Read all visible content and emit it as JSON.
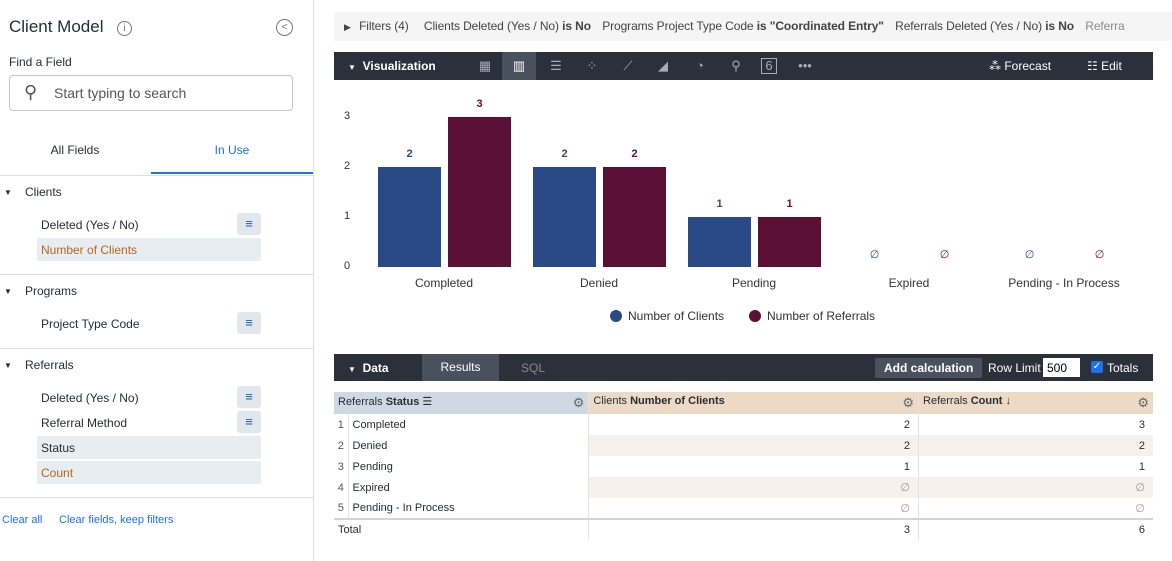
{
  "sidebar": {
    "title": "Client Model",
    "info_icon": "info-icon",
    "back_icon": "back-icon",
    "find_label": "Find a Field",
    "search_placeholder": "Start typing to search",
    "tabs": [
      "All Fields",
      "In Use"
    ],
    "groups": [
      {
        "name": "Clients",
        "fields": [
          {
            "label": "Deleted (Yes / No)",
            "filter": true
          },
          {
            "label": "Number of Clients",
            "selected": true,
            "measure": true
          }
        ]
      },
      {
        "name": "Programs",
        "fields": [
          {
            "label": "Project Type Code",
            "filter": true
          }
        ]
      },
      {
        "name": "Referrals",
        "fields": [
          {
            "label": "Deleted (Yes / No)",
            "filter": true
          },
          {
            "label": "Referral Method",
            "filter": true
          },
          {
            "label": "Status",
            "selected": true
          },
          {
            "label": "Count",
            "selected": true,
            "measure": true
          }
        ]
      }
    ],
    "clear_all": "Clear all",
    "clear_fields": "Clear fields, keep filters"
  },
  "filters": {
    "label": "Filters (4)",
    "items": [
      {
        "field": "Clients Deleted (Yes / No)",
        "cond": "is No"
      },
      {
        "field": "Programs Project Type Code",
        "cond": "is \"Coordinated Entry\""
      },
      {
        "field": "Referrals Deleted (Yes / No)",
        "cond": "is No"
      },
      {
        "field": "Referra",
        "cond": ""
      }
    ]
  },
  "visualization": {
    "label": "Visualization",
    "forecast": "Forecast",
    "edit": "Edit",
    "active_type": "column",
    "single_value_icon": "6"
  },
  "chart_data": {
    "type": "bar",
    "categories": [
      "Completed",
      "Denied",
      "Pending",
      "Expired",
      "Pending - In Process"
    ],
    "series": [
      {
        "name": "Number of Clients",
        "values": [
          2,
          2,
          1,
          null,
          null
        ],
        "color": "#2a4a86"
      },
      {
        "name": "Number of Referrals",
        "values": [
          3,
          2,
          1,
          null,
          null
        ],
        "color": "#5b1036"
      }
    ],
    "yticks": [
      "0",
      "1",
      "2",
      "3"
    ],
    "ylim": [
      0,
      3
    ],
    "null_label": "∅",
    "legend": "bottom"
  },
  "data": {
    "label": "Data",
    "tabs": [
      "Results",
      "SQL"
    ],
    "add_calc": "Add calculation",
    "row_limit_label": "Row Limit",
    "row_limit": "500",
    "totals_label": "Totals",
    "totals_checked": true,
    "columns": [
      {
        "view": "Referrals",
        "field": "Status"
      },
      {
        "view": "Clients",
        "field": "Number of Clients"
      },
      {
        "view": "Referrals",
        "field": "Count ↓"
      }
    ],
    "rows": [
      [
        "1",
        "Completed",
        "2",
        "3"
      ],
      [
        "2",
        "Denied",
        "2",
        "2"
      ],
      [
        "3",
        "Pending",
        "1",
        "1"
      ],
      [
        "4",
        "Expired",
        "∅",
        "∅"
      ],
      [
        "5",
        "Pending - In Process",
        "∅",
        "∅"
      ]
    ],
    "totals": [
      "Total",
      "3",
      "6"
    ]
  }
}
